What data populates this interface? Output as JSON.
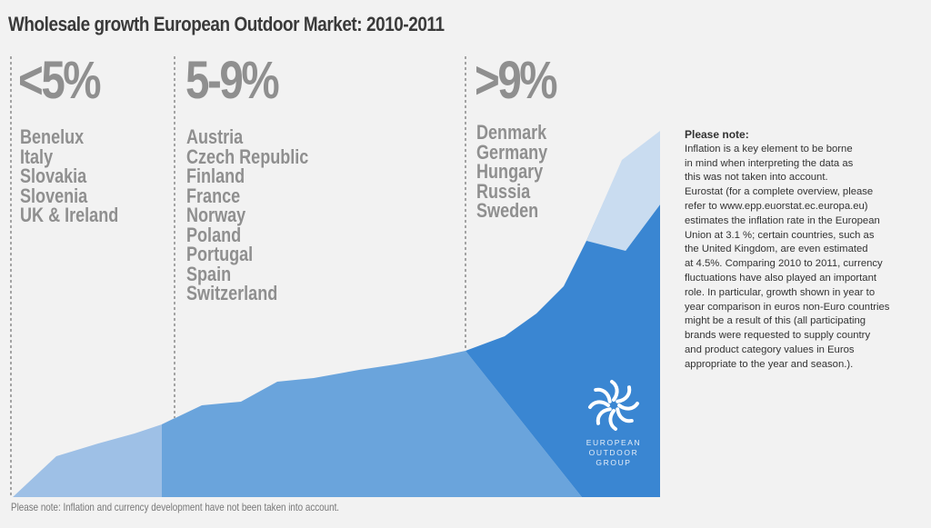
{
  "title": "Wholesale growth European Outdoor Market: 2010-2011",
  "chart_data": {
    "type": "area",
    "title": "Wholesale growth European Outdoor Market: 2010-2011",
    "bands": [
      {
        "label": "<5%",
        "countries": [
          "Benelux",
          "Italy",
          "Slovakia",
          "Slovenia",
          "UK & Ireland"
        ]
      },
      {
        "label": "5-9%",
        "countries": [
          "Austria",
          "Czech Republic",
          "Finland",
          "France",
          "Norway",
          "Poland",
          "Portugal",
          "Spain",
          "Switzerland"
        ]
      },
      {
        "label": ">9%",
        "countries": [
          "Denmark",
          "Germany",
          "Hungary",
          "Russia",
          "Sweden"
        ]
      }
    ],
    "grid": false,
    "legend": "none",
    "colors": {
      "band1": "#9ec0e6",
      "band2": "#6aa4dc",
      "band3": "#3a86d2",
      "overlay": "#c9dcf0",
      "background": "#f2f2f2"
    }
  },
  "note": {
    "heading": "Please note:",
    "lines": [
      "Inflation is a key element to be borne",
      "in mind when interpreting the data as",
      "this was not taken into account.",
      "Eurostat (for a complete overview, please",
      "refer to www.epp.euorstat.ec.europa.eu)",
      "estimates the inflation rate in the European",
      "Union at 3.1 %; certain countries, such as",
      "the United Kingdom, are even estimated",
      "at 4.5%. Comparing 2010 to 2011, currency",
      "fluctuations have also played an important",
      "role. In particular, growth shown in year to",
      "year comparison in euros non-Euro countries",
      "might be a result of this (all participating",
      "brands were requested to supply country",
      "and product category values in Euros",
      "appropriate to the year and season.)."
    ]
  },
  "footnote": "Please note: Inflation and currency development have not been taken into account.",
  "logo": {
    "icon": "flower-icon",
    "lines": [
      "EUROPEAN",
      "OUTDOOR",
      "GROUP"
    ]
  }
}
